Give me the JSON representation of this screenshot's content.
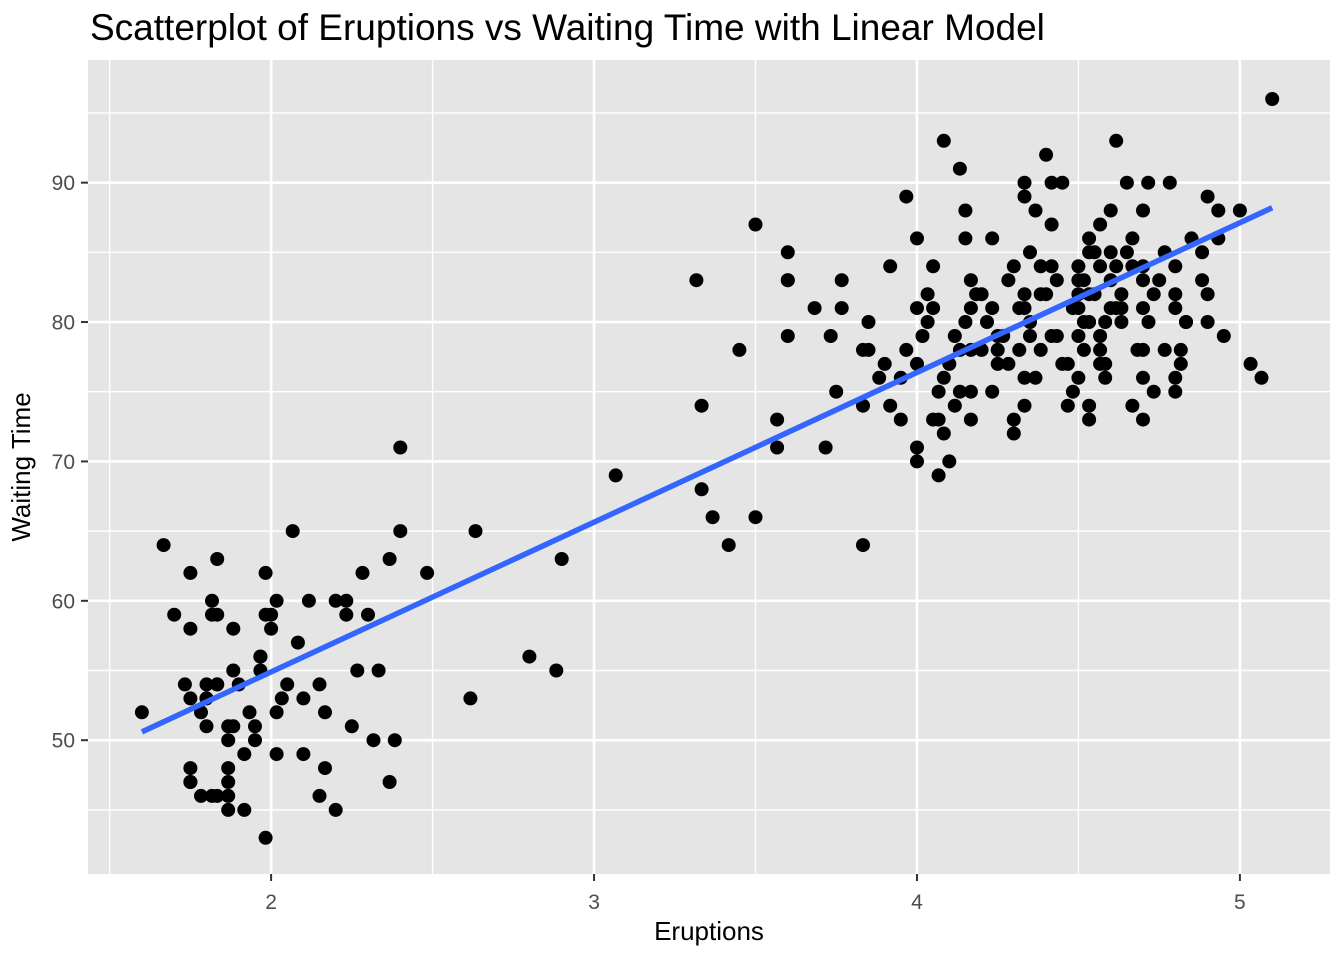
{
  "chart_data": {
    "type": "scatter",
    "title": "Scatterplot of Eruptions vs Waiting Time with Linear Model",
    "xlabel": "Eruptions",
    "ylabel": "Waiting Time",
    "xlim": [
      1.433,
      5.279
    ],
    "ylim": [
      40.4,
      98.8
    ],
    "x_ticks": [
      2,
      3,
      4,
      5
    ],
    "y_ticks": [
      50,
      60,
      70,
      80,
      90
    ],
    "x_minor_ticks": [
      1.5,
      2.5,
      3.5,
      4.5
    ],
    "y_minor_ticks": [
      45,
      55,
      65,
      75,
      85,
      95
    ],
    "grid": true,
    "legend": "none",
    "colors": {
      "panel_background": "#E5E5E5",
      "gridline": "#FFFFFF",
      "point": "#000000",
      "trend_line": "#3366FF",
      "tick_mark": "#333333",
      "tick_label": "#4D4D4D",
      "title_text": "#000000"
    },
    "trend_line": {
      "model": "linear_fit",
      "slope": 10.73,
      "intercept": 33.47,
      "x_start": 1.6,
      "y_start": 50.6,
      "x_end": 5.1,
      "y_end": 88.2
    },
    "points": [
      [
        3.6,
        79
      ],
      [
        1.8,
        54
      ],
      [
        3.333,
        74
      ],
      [
        2.283,
        62
      ],
      [
        4.533,
        85
      ],
      [
        2.883,
        55
      ],
      [
        4.7,
        88
      ],
      [
        3.6,
        85
      ],
      [
        1.95,
        51
      ],
      [
        4.35,
        85
      ],
      [
        1.833,
        54
      ],
      [
        3.917,
        84
      ],
      [
        4.2,
        78
      ],
      [
        1.75,
        47
      ],
      [
        4.7,
        83
      ],
      [
        2.167,
        52
      ],
      [
        1.75,
        62
      ],
      [
        4.8,
        84
      ],
      [
        1.6,
        52
      ],
      [
        4.25,
        79
      ],
      [
        1.8,
        51
      ],
      [
        1.75,
        47
      ],
      [
        3.45,
        78
      ],
      [
        3.067,
        69
      ],
      [
        4.533,
        74
      ],
      [
        3.6,
        83
      ],
      [
        1.967,
        55
      ],
      [
        4.083,
        76
      ],
      [
        3.85,
        78
      ],
      [
        4.433,
        79
      ],
      [
        4.3,
        73
      ],
      [
        4.467,
        77
      ],
      [
        3.367,
        66
      ],
      [
        4.033,
        80
      ],
      [
        3.833,
        74
      ],
      [
        2.017,
        52
      ],
      [
        1.867,
        48
      ],
      [
        4.833,
        80
      ],
      [
        1.833,
        59
      ],
      [
        4.783,
        90
      ],
      [
        4.35,
        80
      ],
      [
        1.883,
        58
      ],
      [
        4.567,
        84
      ],
      [
        1.75,
        58
      ],
      [
        4.533,
        73
      ],
      [
        3.317,
        83
      ],
      [
        3.833,
        64
      ],
      [
        2.1,
        53
      ],
      [
        4.633,
        82
      ],
      [
        2.0,
        59
      ],
      [
        4.8,
        75
      ],
      [
        4.716,
        90
      ],
      [
        1.833,
        54
      ],
      [
        4.833,
        80
      ],
      [
        1.733,
        54
      ],
      [
        4.883,
        83
      ],
      [
        3.717,
        71
      ],
      [
        1.667,
        64
      ],
      [
        4.567,
        77
      ],
      [
        4.317,
        81
      ],
      [
        2.233,
        59
      ],
      [
        4.5,
        84
      ],
      [
        1.75,
        48
      ],
      [
        4.8,
        82
      ],
      [
        1.817,
        60
      ],
      [
        4.4,
        92
      ],
      [
        4.167,
        78
      ],
      [
        4.7,
        78
      ],
      [
        2.067,
        65
      ],
      [
        4.7,
        73
      ],
      [
        4.033,
        82
      ],
      [
        1.967,
        56
      ],
      [
        4.5,
        79
      ],
      [
        4.0,
        71
      ],
      [
        1.983,
        62
      ],
      [
        5.067,
        76
      ],
      [
        2.017,
        60
      ],
      [
        4.567,
        78
      ],
      [
        3.883,
        76
      ],
      [
        3.6,
        83
      ],
      [
        4.133,
        75
      ],
      [
        4.333,
        82
      ],
      [
        4.1,
        70
      ],
      [
        2.633,
        65
      ],
      [
        4.067,
        73
      ],
      [
        4.933,
        88
      ],
      [
        3.95,
        76
      ],
      [
        4.517,
        80
      ],
      [
        2.167,
        48
      ],
      [
        4.0,
        86
      ],
      [
        2.2,
        60
      ],
      [
        4.333,
        90
      ],
      [
        1.867,
        50
      ],
      [
        4.817,
        78
      ],
      [
        1.833,
        63
      ],
      [
        4.3,
        72
      ],
      [
        4.667,
        84
      ],
      [
        3.75,
        75
      ],
      [
        1.867,
        51
      ],
      [
        4.9,
        82
      ],
      [
        2.483,
        62
      ],
      [
        4.367,
        88
      ],
      [
        2.1,
        49
      ],
      [
        4.5,
        83
      ],
      [
        4.05,
        81
      ],
      [
        1.867,
        47
      ],
      [
        4.7,
        84
      ],
      [
        1.783,
        52
      ],
      [
        4.85,
        86
      ],
      [
        3.683,
        81
      ],
      [
        4.733,
        75
      ],
      [
        2.3,
        59
      ],
      [
        4.9,
        89
      ],
      [
        4.417,
        79
      ],
      [
        1.7,
        59
      ],
      [
        4.633,
        81
      ],
      [
        2.317,
        50
      ],
      [
        4.6,
        85
      ],
      [
        1.817,
        59
      ],
      [
        4.417,
        87
      ],
      [
        2.617,
        53
      ],
      [
        4.067,
        69
      ],
      [
        4.25,
        77
      ],
      [
        1.967,
        56
      ],
      [
        4.6,
        88
      ],
      [
        3.767,
        81
      ],
      [
        1.917,
        45
      ],
      [
        4.5,
        82
      ],
      [
        2.267,
        55
      ],
      [
        4.65,
        90
      ],
      [
        1.867,
        45
      ],
      [
        4.167,
        83
      ],
      [
        2.8,
        56
      ],
      [
        4.333,
        89
      ],
      [
        1.833,
        46
      ],
      [
        4.383,
        82
      ],
      [
        1.883,
        51
      ],
      [
        4.933,
        86
      ],
      [
        2.033,
        53
      ],
      [
        3.733,
        79
      ],
      [
        4.233,
        81
      ],
      [
        2.233,
        60
      ],
      [
        4.533,
        82
      ],
      [
        4.817,
        77
      ],
      [
        4.333,
        76
      ],
      [
        1.983,
        59
      ],
      [
        4.633,
        80
      ],
      [
        2.017,
        49
      ],
      [
        5.1,
        96
      ],
      [
        1.8,
        53
      ],
      [
        5.033,
        77
      ],
      [
        4.0,
        77
      ],
      [
        2.4,
        65
      ],
      [
        4.6,
        81
      ],
      [
        3.567,
        71
      ],
      [
        4.0,
        70
      ],
      [
        4.5,
        81
      ],
      [
        4.083,
        93
      ],
      [
        1.8,
        53
      ],
      [
        3.967,
        89
      ],
      [
        2.2,
        45
      ],
      [
        4.15,
        86
      ],
      [
        2.0,
        58
      ],
      [
        3.833,
        78
      ],
      [
        3.5,
        66
      ],
      [
        4.583,
        76
      ],
      [
        2.367,
        63
      ],
      [
        5.0,
        88
      ],
      [
        1.933,
        52
      ],
      [
        4.617,
        93
      ],
      [
        1.917,
        49
      ],
      [
        2.083,
        57
      ],
      [
        4.583,
        77
      ],
      [
        3.333,
        68
      ],
      [
        4.167,
        81
      ],
      [
        4.333,
        81
      ],
      [
        4.167,
        73
      ],
      [
        1.983,
        43
      ],
      [
        2.15,
        46
      ],
      [
        2.367,
        47
      ],
      [
        1.783,
        46
      ],
      [
        1.867,
        46
      ],
      [
        1.817,
        46
      ],
      [
        2.333,
        55
      ],
      [
        2.25,
        51
      ],
      [
        2.383,
        50
      ],
      [
        2.4,
        71
      ],
      [
        2.9,
        63
      ],
      [
        3.5,
        87
      ],
      [
        4.133,
        91
      ],
      [
        4.417,
        90
      ],
      [
        4.45,
        90
      ],
      [
        4.15,
        88
      ],
      [
        4.283,
        77
      ],
      [
        4.533,
        80
      ],
      [
        4.7,
        81
      ],
      [
        4.417,
        84
      ],
      [
        4.55,
        82
      ],
      [
        4.25,
        78
      ],
      [
        4.517,
        83
      ],
      [
        4.65,
        85
      ],
      [
        4.8,
        81
      ],
      [
        4.35,
        79
      ],
      [
        4.1,
        77
      ],
      [
        4.567,
        79
      ],
      [
        4.217,
        80
      ],
      [
        4.383,
        84
      ],
      [
        4.667,
        86
      ],
      [
        4.8,
        76
      ],
      [
        4.483,
        75
      ],
      [
        4.317,
        78
      ],
      [
        4.6,
        83
      ],
      [
        4.883,
        85
      ],
      [
        4.183,
        82
      ],
      [
        4.717,
        80
      ],
      [
        4.067,
        75
      ],
      [
        4.95,
        79
      ],
      [
        4.533,
        86
      ],
      [
        4.45,
        77
      ],
      [
        4.283,
        83
      ],
      [
        4.617,
        81
      ],
      [
        4.15,
        80
      ],
      [
        4.5,
        76
      ],
      [
        4.4,
        82
      ],
      [
        4.767,
        85
      ],
      [
        4.333,
        74
      ],
      [
        4.683,
        78
      ],
      [
        4.233,
        75
      ],
      [
        3.917,
        74
      ],
      [
        3.967,
        78
      ],
      [
        4.05,
        73
      ],
      [
        3.85,
        80
      ],
      [
        4.117,
        79
      ],
      [
        4.0,
        81
      ],
      [
        3.9,
        77
      ],
      [
        4.05,
        84
      ],
      [
        4.2,
        82
      ],
      [
        3.95,
        73
      ],
      [
        4.433,
        83
      ],
      [
        4.55,
        85
      ],
      [
        4.267,
        79
      ],
      [
        4.733,
        82
      ],
      [
        4.767,
        78
      ],
      [
        4.167,
        75
      ],
      [
        4.517,
        78
      ],
      [
        4.617,
        84
      ],
      [
        4.367,
        76
      ],
      [
        4.7,
        76
      ],
      [
        4.3,
        84
      ],
      [
        4.583,
        80
      ],
      [
        4.667,
        74
      ],
      [
        4.133,
        78
      ],
      [
        4.233,
        86
      ],
      [
        4.483,
        81
      ],
      [
        4.567,
        87
      ],
      [
        4.083,
        72
      ],
      [
        4.9,
        80
      ],
      [
        4.383,
        78
      ],
      [
        4.117,
        74
      ],
      [
        4.017,
        79
      ],
      [
        4.467,
        74
      ],
      [
        4.75,
        83
      ],
      [
        3.767,
        83
      ],
      [
        1.75,
        53
      ],
      [
        1.883,
        55
      ],
      [
        1.9,
        54
      ],
      [
        1.95,
        50
      ],
      [
        2.05,
        54
      ],
      [
        2.117,
        60
      ],
      [
        2.15,
        54
      ],
      [
        3.417,
        64
      ],
      [
        3.567,
        73
      ]
    ]
  }
}
